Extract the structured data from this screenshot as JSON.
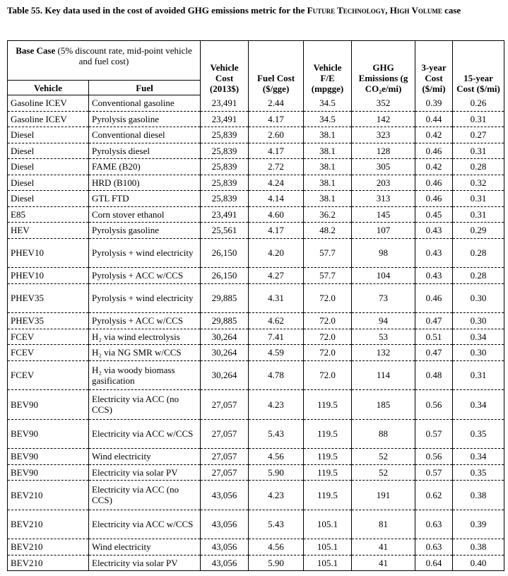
{
  "title": {
    "prefix": "Table 55. Key data used in the cost of avoided GHG emissions metric for the ",
    "emphasis": "Future Technology, High Volume",
    "suffix": " case"
  },
  "table": {
    "base_case": {
      "label": "Base Case",
      "note": "(5% discount rate, mid-point vehicle and fuel cost)"
    },
    "subheaders": [
      "Vehicle",
      "Fuel"
    ],
    "headers": [
      "Vehicle Cost (2013$)",
      "Fuel Cost ($/gge)",
      "Vehicle F/E (mpgge)",
      "GHG Emissions (g CO₂e/mi)",
      "3-year Cost ($/mi)",
      "15-year Cost ($/mi)"
    ],
    "rows": [
      [
        "Gasoline ICEV",
        "Conventional gasoline",
        "23,491",
        "2.44",
        "34.5",
        "352",
        "0.39",
        "0.26"
      ],
      [
        "Gasoline ICEV",
        "Pyrolysis gasoline",
        "23,491",
        "4.17",
        "34.5",
        "142",
        "0.44",
        "0.31"
      ],
      [
        "Diesel",
        "Conventional diesel",
        "25,839",
        "2.60",
        "38.1",
        "323",
        "0.42",
        "0.27"
      ],
      [
        "Diesel",
        "Pyrolysis diesel",
        "25,839",
        "4.17",
        "38.1",
        "128",
        "0.46",
        "0.31"
      ],
      [
        "Diesel",
        "FAME (B20)",
        "25,839",
        "2.72",
        "38.1",
        "305",
        "0.42",
        "0.28"
      ],
      [
        "Diesel",
        "HRD (B100)",
        "25,839",
        "4.24",
        "38.1",
        "203",
        "0.46",
        "0.32"
      ],
      [
        "Diesel",
        "GTL FTD",
        "25,839",
        "4.14",
        "38.1",
        "313",
        "0.46",
        "0.31"
      ],
      [
        "E85",
        "Corn stover ethanol",
        "23,491",
        "4.60",
        "36.2",
        "145",
        "0.45",
        "0.31"
      ],
      [
        "HEV",
        "Pyrolysis gasoline",
        "25,561",
        "4.17",
        "48.2",
        "107",
        "0.43",
        "0.29"
      ],
      [
        "PHEV10",
        "Pyrolysis + wind electricity",
        "26,150",
        "4.20",
        "57.7",
        "98",
        "0.43",
        "0.28"
      ],
      [
        "PHEV10",
        "Pyrolysis + ACC w/CCS",
        "26,150",
        "4.27",
        "57.7",
        "104",
        "0.43",
        "0.28"
      ],
      [
        "PHEV35",
        "Pyrolysis + wind electricity",
        "29,885",
        "4.31",
        "72.0",
        "73",
        "0.46",
        "0.30"
      ],
      [
        "PHEV35",
        "Pyrolysis + ACC w/CCS",
        "29,885",
        "4.62",
        "72.0",
        "94",
        "0.47",
        "0.30"
      ],
      [
        "FCEV",
        "H₂ via wind electrolysis",
        "30,264",
        "7.41",
        "72.0",
        "53",
        "0.51",
        "0.34"
      ],
      [
        "FCEV",
        "H₂ via NG SMR w/CCS",
        "30,264",
        "4.59",
        "72.0",
        "132",
        "0.47",
        "0.30"
      ],
      [
        "FCEV",
        "H₂ via woody biomass gasification",
        "30,264",
        "4.78",
        "72.0",
        "114",
        "0.48",
        "0.31"
      ],
      [
        "BEV90",
        "Electricity via ACC (no CCS)",
        "27,057",
        "4.23",
        "119.5",
        "185",
        "0.56",
        "0.34"
      ],
      [
        "BEV90",
        "Electricity via ACC w/CCS",
        "27,057",
        "5.43",
        "119.5",
        "88",
        "0.57",
        "0.35"
      ],
      [
        "BEV90",
        "Wind electricity",
        "27,057",
        "4.56",
        "119.5",
        "52",
        "0.56",
        "0.34"
      ],
      [
        "BEV90",
        "Electricity via solar PV",
        "27,057",
        "5.90",
        "119.5",
        "52",
        "0.57",
        "0.35"
      ],
      [
        "BEV210",
        "Electricity via ACC (no CCS)",
        "43,056",
        "4.23",
        "119.5",
        "191",
        "0.62",
        "0.38"
      ],
      [
        "BEV210",
        "Electricity via ACC w/CCS",
        "43,056",
        "5.43",
        "105.1",
        "81",
        "0.63",
        "0.39"
      ],
      [
        "BEV210",
        "Wind electricity",
        "43,056",
        "4.56",
        "105.1",
        "41",
        "0.63",
        "0.38"
      ],
      [
        "BEV210",
        "Electricity via solar PV",
        "43,056",
        "5.90",
        "105.1",
        "41",
        "0.64",
        "0.40"
      ]
    ]
  }
}
